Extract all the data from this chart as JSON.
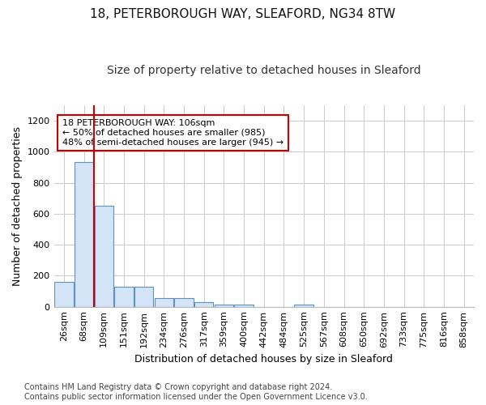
{
  "title_line1": "18, PETERBOROUGH WAY, SLEAFORD, NG34 8TW",
  "title_line2": "Size of property relative to detached houses in Sleaford",
  "xlabel": "Distribution of detached houses by size in Sleaford",
  "ylabel": "Number of detached properties",
  "bar_labels": [
    "26sqm",
    "68sqm",
    "109sqm",
    "151sqm",
    "192sqm",
    "234sqm",
    "276sqm",
    "317sqm",
    "359sqm",
    "400sqm",
    "442sqm",
    "484sqm",
    "525sqm",
    "567sqm",
    "608sqm",
    "650sqm",
    "692sqm",
    "733sqm",
    "775sqm",
    "816sqm",
    "858sqm"
  ],
  "bar_values": [
    160,
    935,
    650,
    130,
    130,
    55,
    55,
    30,
    13,
    13,
    0,
    0,
    13,
    0,
    0,
    0,
    0,
    0,
    0,
    0,
    0
  ],
  "bar_color": "#d4e4f7",
  "bar_edge_color": "#6090c0",
  "vline_x": 1.5,
  "vline_color": "#cc0000",
  "annotation_text": "18 PETERBOROUGH WAY: 106sqm\n← 50% of detached houses are smaller (985)\n48% of semi-detached houses are larger (945) →",
  "annotation_box_color": "#ffffff",
  "annotation_box_edge": "#cc0000",
  "ylim": [
    0,
    1300
  ],
  "yticks": [
    0,
    200,
    400,
    600,
    800,
    1000,
    1200
  ],
  "footer": "Contains HM Land Registry data © Crown copyright and database right 2024.\nContains public sector information licensed under the Open Government Licence v3.0.",
  "bg_color": "#ffffff",
  "plot_bg_color": "#ffffff",
  "grid_color": "#cccccc",
  "title_fontsize": 11,
  "subtitle_fontsize": 10,
  "axis_label_fontsize": 9,
  "tick_fontsize": 8,
  "footer_fontsize": 7
}
